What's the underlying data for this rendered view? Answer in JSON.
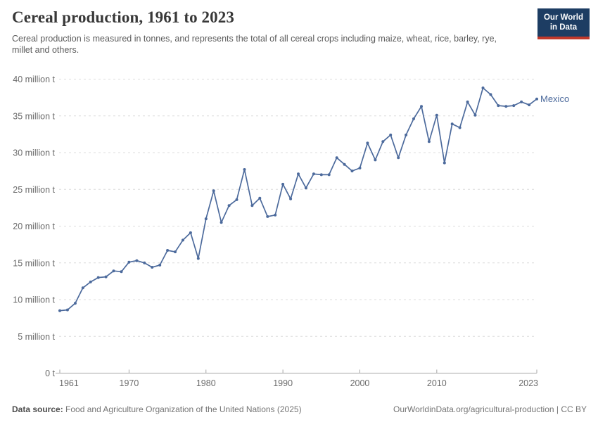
{
  "header": {
    "title": "Cereal production, 1961 to 2023",
    "subtitle": "Cereal production is measured in tonnes, and represents the total of all cereal crops including maize, wheat, rice, barley, rye, millet and others."
  },
  "logo": {
    "line1": "Our World",
    "line2": "in Data",
    "bg_color": "#1d3d63",
    "bar_color": "#c0392b"
  },
  "footer": {
    "data_source_label": "Data source:",
    "data_source_value": " Food and Agriculture Organization of the United Nations (2025)",
    "license": "OurWorldinData.org/agricultural-production | CC BY"
  },
  "chart_data": {
    "type": "line",
    "title": "Cereal production, 1961 to 2023",
    "xlabel": "",
    "ylabel": "",
    "unit": "million t",
    "xlim": [
      1961,
      2023
    ],
    "ylim": [
      0,
      40
    ],
    "grid": "horizontal-dashed",
    "legend_position": "end-of-line-label",
    "x_axis": {
      "ticks": [
        1961,
        1970,
        1980,
        1990,
        2000,
        2010,
        2023
      ],
      "tick_labels": [
        "1961",
        "1970",
        "1980",
        "1990",
        "2000",
        "2010",
        "2023"
      ]
    },
    "y_axis": {
      "ticks": [
        0,
        5,
        10,
        15,
        20,
        25,
        30,
        35,
        40
      ],
      "tick_labels": [
        "0 t",
        "5 million t",
        "10 million t",
        "15 million t",
        "20 million t",
        "25 million t",
        "30 million t",
        "35 million t",
        "40 million t"
      ]
    },
    "series": [
      {
        "name": "Mexico",
        "color": "#4c6a9c",
        "x": [
          1961,
          1962,
          1963,
          1964,
          1965,
          1966,
          1967,
          1968,
          1969,
          1970,
          1971,
          1972,
          1973,
          1974,
          1975,
          1976,
          1977,
          1978,
          1979,
          1980,
          1981,
          1982,
          1983,
          1984,
          1985,
          1986,
          1987,
          1988,
          1989,
          1990,
          1991,
          1992,
          1993,
          1994,
          1995,
          1996,
          1997,
          1998,
          1999,
          2000,
          2001,
          2002,
          2003,
          2004,
          2005,
          2006,
          2007,
          2008,
          2009,
          2010,
          2011,
          2012,
          2013,
          2014,
          2015,
          2016,
          2017,
          2018,
          2019,
          2020,
          2021,
          2022,
          2023
        ],
        "values": [
          8.5,
          8.6,
          9.5,
          11.6,
          12.4,
          13.0,
          13.1,
          13.9,
          13.8,
          15.1,
          15.3,
          15.0,
          14.4,
          14.7,
          16.7,
          16.5,
          18.1,
          19.1,
          15.6,
          21.0,
          24.8,
          20.5,
          22.8,
          23.6,
          27.7,
          22.8,
          23.8,
          21.3,
          21.5,
          25.7,
          23.7,
          27.1,
          25.2,
          27.1,
          27.0,
          27.0,
          29.3,
          28.4,
          27.5,
          27.9,
          31.3,
          29.0,
          31.5,
          32.4,
          29.3,
          32.4,
          34.6,
          36.3,
          31.5,
          35.1,
          28.6,
          33.9,
          33.4,
          36.9,
          35.1,
          38.8,
          37.9,
          36.4,
          36.3,
          36.4,
          36.9,
          36.5,
          37.3
        ]
      }
    ],
    "colors": {
      "grid": "#dcdcdc",
      "axis": "#a6a6a6",
      "tick_label": "#6b6b6b",
      "series": "#4c6a9c"
    }
  }
}
